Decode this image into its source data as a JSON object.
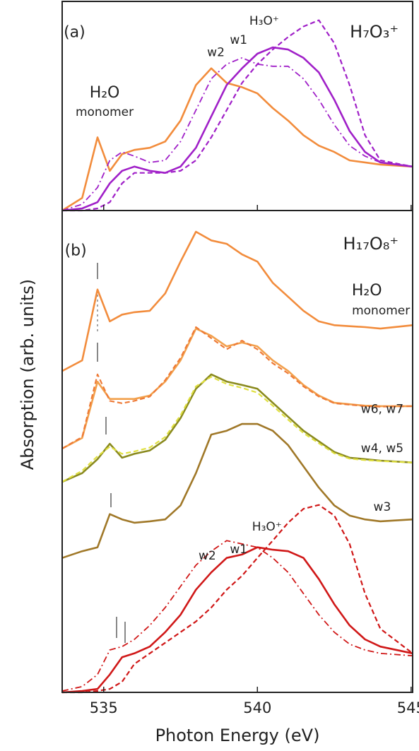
{
  "ylabel": "Absorption (arb. units)",
  "chart_data": [
    {
      "type": "line",
      "title": "H₇O₃⁺",
      "x": [
        533.65,
        534.3,
        534.8,
        535.2,
        535.6,
        536,
        536.5,
        537,
        537.5,
        538,
        538.5,
        539,
        539.5,
        540,
        540.5,
        541,
        541.5,
        542,
        542.5,
        543,
        543.5,
        544,
        545.05
      ],
      "xlim": [
        533.65,
        545.05
      ],
      "ylim": [
        0,
        1
      ],
      "xticks": [
        535,
        540,
        545
      ],
      "series": [
        {
          "name": "H₂O monomer",
          "color": "#f28c3c",
          "dash": "solid",
          "values": [
            0.0,
            0.06,
            0.35,
            0.19,
            0.27,
            0.29,
            0.3,
            0.33,
            0.43,
            0.6,
            0.68,
            0.61,
            0.59,
            0.56,
            0.49,
            0.43,
            0.36,
            0.31,
            0.28,
            0.24,
            0.23,
            0.22,
            0.21
          ]
        },
        {
          "name": "w2",
          "color": "#a020c8",
          "dash": "dashdot",
          "values": [
            0.0,
            0.03,
            0.11,
            0.24,
            0.28,
            0.26,
            0.23,
            0.24,
            0.33,
            0.48,
            0.63,
            0.7,
            0.73,
            0.7,
            0.69,
            0.69,
            0.63,
            0.53,
            0.41,
            0.31,
            0.26,
            0.23,
            0.21
          ]
        },
        {
          "name": "w1",
          "color": "#a020c8",
          "dash": "solid",
          "values": [
            0.0,
            0.01,
            0.04,
            0.13,
            0.19,
            0.21,
            0.19,
            0.18,
            0.21,
            0.3,
            0.45,
            0.6,
            0.68,
            0.75,
            0.78,
            0.77,
            0.73,
            0.66,
            0.53,
            0.38,
            0.28,
            0.23,
            0.21
          ]
        },
        {
          "name": "H₃O⁺",
          "color": "#a020c8",
          "dash": "dashed",
          "values": [
            0.0,
            0.0,
            0.01,
            0.04,
            0.13,
            0.18,
            0.18,
            0.18,
            0.19,
            0.24,
            0.35,
            0.48,
            0.61,
            0.7,
            0.77,
            0.83,
            0.88,
            0.91,
            0.8,
            0.6,
            0.36,
            0.24,
            0.21
          ]
        }
      ],
      "annotations": [
        {
          "text": "(a)",
          "x": 534.05,
          "y": 0.85
        },
        {
          "text": "H₂O",
          "x": 535.03,
          "y": 0.56
        },
        {
          "text": "monomer",
          "x": 535.03,
          "y": 0.47
        },
        {
          "text": "w2",
          "x": 538.65,
          "y": 0.755
        },
        {
          "text": "w1",
          "x": 539.39,
          "y": 0.815
        },
        {
          "text": "H₃O⁺",
          "x": 540.22,
          "y": 0.905
        }
      ]
    },
    {
      "type": "line",
      "title": "H₁₇O₈⁺",
      "xlabel": "Photon Energy (eV)",
      "x": [
        533.65,
        534.3,
        534.8,
        535.2,
        535.6,
        536,
        536.5,
        537,
        537.5,
        538,
        538.5,
        539,
        539.5,
        540,
        540.5,
        541,
        541.5,
        542,
        542.5,
        543,
        543.5,
        544,
        545.05
      ],
      "xlim": [
        533.65,
        545.05
      ],
      "ylim": [
        0,
        1
      ],
      "xticks": [
        535,
        540,
        545
      ],
      "series": [
        {
          "name": "H₂O monomer",
          "color": "#f28c3c",
          "dash": "solid",
          "values": [
            0.667,
            0.689,
            0.836,
            0.77,
            0.784,
            0.789,
            0.792,
            0.828,
            0.894,
            0.956,
            0.938,
            0.931,
            0.909,
            0.894,
            0.85,
            0.821,
            0.792,
            0.77,
            0.762,
            0.76,
            0.758,
            0.755,
            0.762
          ]
        },
        {
          "name": "w6",
          "color": "#f2a04c",
          "dash": "solid",
          "values": [
            0.506,
            0.528,
            0.645,
            0.609,
            0.609,
            0.609,
            0.616,
            0.645,
            0.689,
            0.755,
            0.74,
            0.718,
            0.726,
            0.718,
            0.689,
            0.667,
            0.638,
            0.616,
            0.601,
            0.598,
            0.595,
            0.594,
            0.594
          ]
        },
        {
          "name": "w7",
          "color": "#ee7a36",
          "dash": "dashed",
          "values": [
            0.506,
            0.53,
            0.66,
            0.605,
            0.6,
            0.605,
            0.614,
            0.648,
            0.694,
            0.758,
            0.735,
            0.712,
            0.73,
            0.712,
            0.683,
            0.662,
            0.635,
            0.614,
            0.6,
            0.597,
            0.594,
            0.593,
            0.594
          ]
        },
        {
          "name": "w4",
          "color": "#8a8a1e",
          "dash": "solid",
          "values": [
            0.437,
            0.455,
            0.484,
            0.516,
            0.487,
            0.495,
            0.502,
            0.524,
            0.569,
            0.63,
            0.66,
            0.645,
            0.638,
            0.63,
            0.601,
            0.572,
            0.543,
            0.521,
            0.499,
            0.487,
            0.484,
            0.481,
            0.477
          ]
        },
        {
          "name": "w5",
          "color": "#e0e040",
          "dash": "dashed",
          "values": [
            0.437,
            0.46,
            0.49,
            0.51,
            0.495,
            0.5,
            0.508,
            0.53,
            0.575,
            0.635,
            0.655,
            0.64,
            0.632,
            0.622,
            0.595,
            0.566,
            0.538,
            0.517,
            0.496,
            0.485,
            0.482,
            0.48,
            0.477
          ]
        },
        {
          "name": "w3",
          "color": "#a07828",
          "dash": "solid",
          "values": [
            0.279,
            0.293,
            0.301,
            0.37,
            0.359,
            0.352,
            0.355,
            0.359,
            0.388,
            0.455,
            0.535,
            0.543,
            0.557,
            0.557,
            0.543,
            0.513,
            0.469,
            0.425,
            0.388,
            0.367,
            0.359,
            0.355,
            0.359
          ]
        },
        {
          "name": "w2",
          "color": "#d01818",
          "dash": "dashdot",
          "values": [
            0.003,
            0.012,
            0.037,
            0.088,
            0.095,
            0.11,
            0.139,
            0.176,
            0.22,
            0.264,
            0.293,
            0.315,
            0.308,
            0.301,
            0.279,
            0.249,
            0.205,
            0.161,
            0.125,
            0.1,
            0.088,
            0.081,
            0.076
          ]
        },
        {
          "name": "w1",
          "color": "#d01818",
          "dash": "solid",
          "values": [
            0.0,
            0.003,
            0.007,
            0.037,
            0.073,
            0.081,
            0.095,
            0.125,
            0.161,
            0.213,
            0.249,
            0.279,
            0.286,
            0.301,
            0.296,
            0.293,
            0.279,
            0.235,
            0.183,
            0.139,
            0.11,
            0.095,
            0.081
          ]
        },
        {
          "name": "H₃O⁺",
          "color": "#d01818",
          "dash": "dashed",
          "values": [
            0.0,
            0.0,
            0.003,
            0.007,
            0.022,
            0.059,
            0.081,
            0.103,
            0.125,
            0.147,
            0.176,
            0.213,
            0.242,
            0.279,
            0.315,
            0.352,
            0.381,
            0.389,
            0.367,
            0.308,
            0.205,
            0.132,
            0.081
          ]
        }
      ],
      "annotations": [
        {
          "text": "(b)",
          "x": 534.09,
          "y": 0.916
        },
        {
          "text": "H₂O",
          "x": 543.56,
          "y": 0.833
        },
        {
          "text": "monomer",
          "x": 544.02,
          "y": 0.792
        },
        {
          "text": "w6, w7",
          "x": 544.06,
          "y": 0.587
        },
        {
          "text": "w4, w5",
          "x": 544.06,
          "y": 0.506
        },
        {
          "text": "w3",
          "x": 544.06,
          "y": 0.384
        },
        {
          "text": "w1",
          "x": 539.39,
          "y": 0.296
        },
        {
          "text": "w2",
          "x": 538.37,
          "y": 0.283
        },
        {
          "text": "H₃O⁺",
          "x": 540.31,
          "y": 0.343
        }
      ]
    }
  ]
}
